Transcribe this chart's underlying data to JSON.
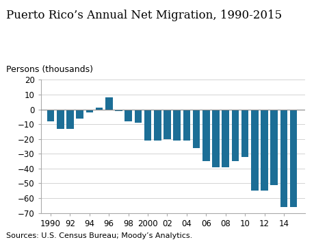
{
  "title": "Puerto Rico’s Annual Net Migration, 1990-2015",
  "ylabel": "Persons (thousands)",
  "source": "Sources: U.S. Census Bureau; Moody’s Analytics.",
  "bar_color": "#1c6e96",
  "years": [
    1990,
    1991,
    1992,
    1993,
    1994,
    1995,
    1996,
    1997,
    1998,
    1999,
    2000,
    2001,
    2002,
    2003,
    2004,
    2005,
    2006,
    2007,
    2008,
    2009,
    2010,
    2011,
    2012,
    2013,
    2014,
    2015
  ],
  "values": [
    -8,
    -13,
    -13,
    -6,
    -2,
    1,
    8,
    -1,
    -8,
    -9,
    -21,
    -21,
    -20,
    -21,
    -21,
    -26,
    -35,
    -39,
    -39,
    -35,
    -32,
    -55,
    -55,
    -51,
    -66,
    -66
  ],
  "ylim": [
    -70,
    20
  ],
  "yticks": [
    -70,
    -60,
    -50,
    -40,
    -30,
    -20,
    -10,
    0,
    10,
    20
  ],
  "xticks": [
    1990,
    1992,
    1994,
    1996,
    1998,
    2000,
    2002,
    2004,
    2006,
    2008,
    2010,
    2012,
    2014
  ],
  "xticklabels": [
    "1990",
    "92",
    "94",
    "96",
    "98",
    "2000",
    "02",
    "04",
    "06",
    "08",
    "10",
    "12",
    "14"
  ],
  "title_fontsize": 12,
  "label_fontsize": 9,
  "tick_fontsize": 8.5,
  "source_fontsize": 8,
  "background_color": "#ffffff",
  "plot_bg_color": "#ffffff",
  "grid_color": "#cccccc",
  "spine_color": "#aaaaaa"
}
